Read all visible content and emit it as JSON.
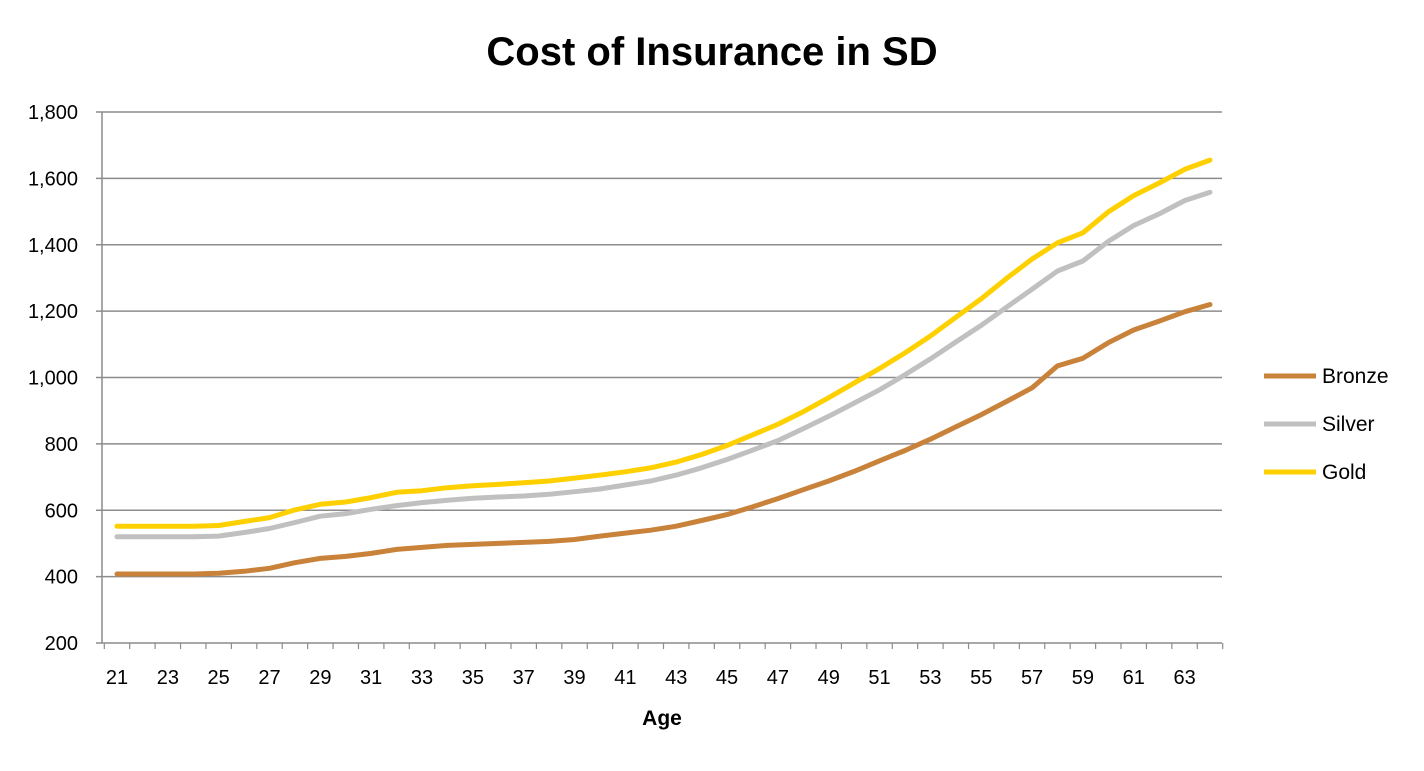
{
  "chart_data": {
    "type": "line",
    "title": "Cost of Insurance in SD",
    "xlabel": "Age",
    "ylabel": "",
    "x": [
      21,
      22,
      23,
      24,
      25,
      26,
      27,
      28,
      29,
      30,
      31,
      32,
      33,
      34,
      35,
      36,
      37,
      38,
      39,
      40,
      41,
      42,
      43,
      44,
      45,
      46,
      47,
      48,
      49,
      50,
      51,
      52,
      53,
      54,
      55,
      56,
      57,
      58,
      59,
      60,
      61,
      62,
      63,
      64
    ],
    "x_tick_labels": [
      "21",
      "23",
      "25",
      "27",
      "29",
      "31",
      "33",
      "35",
      "37",
      "39",
      "41",
      "43",
      "45",
      "47",
      "49",
      "51",
      "53",
      "55",
      "57",
      "59",
      "61",
      "63"
    ],
    "ylim": [
      200,
      1800
    ],
    "y_ticks": [
      200,
      400,
      600,
      800,
      1000,
      1200,
      1400,
      1600,
      1800
    ],
    "y_tick_labels": [
      "200",
      "400",
      "600",
      "800",
      "1,000",
      "1,200",
      "1,400",
      "1,600",
      "1,800"
    ],
    "grid": true,
    "legend_position": "right",
    "series": [
      {
        "name": "Bronze",
        "color": "#C9823A",
        "values": [
          408,
          408,
          408,
          408,
          410,
          416,
          425,
          442,
          455,
          461,
          470,
          482,
          488,
          494,
          497,
          500,
          503,
          506,
          512,
          522,
          531,
          540,
          552,
          569,
          587,
          610,
          635,
          662,
          688,
          717,
          749,
          780,
          814,
          851,
          888,
          928,
          969,
          1035,
          1058,
          1105,
          1143,
          1170,
          1198,
          1220
        ]
      },
      {
        "name": "Silver",
        "color": "#C0C0C0",
        "values": [
          520,
          520,
          520,
          520,
          522,
          533,
          545,
          563,
          582,
          590,
          603,
          614,
          623,
          630,
          636,
          640,
          643,
          648,
          656,
          664,
          676,
          688,
          706,
          728,
          753,
          781,
          810,
          846,
          883,
          923,
          963,
          1008,
          1056,
          1107,
          1157,
          1212,
          1266,
          1321,
          1351,
          1410,
          1458,
          1493,
          1533,
          1558
        ]
      },
      {
        "name": "Gold",
        "color": "#FFD000",
        "values": [
          552,
          552,
          552,
          552,
          554,
          566,
          578,
          601,
          618,
          625,
          638,
          654,
          659,
          668,
          674,
          678,
          683,
          688,
          697,
          706,
          716,
          728,
          745,
          768,
          795,
          827,
          859,
          897,
          939,
          983,
          1027,
          1074,
          1125,
          1181,
          1237,
          1299,
          1357,
          1406,
          1436,
          1499,
          1548,
          1586,
          1627,
          1655
        ]
      }
    ]
  }
}
